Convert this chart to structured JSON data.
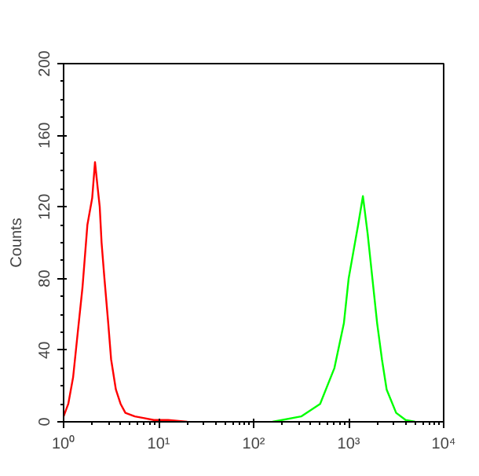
{
  "chart_data": {
    "type": "line",
    "ylabel": "Counts",
    "log": "x",
    "grid": false,
    "xlim": [
      1,
      10000
    ],
    "ylim": [
      0,
      200
    ],
    "xticks": [
      {
        "value": 1,
        "label": "10⁰"
      },
      {
        "value": 10,
        "label": "10¹"
      },
      {
        "value": 100,
        "label": "10²"
      },
      {
        "value": 1000,
        "label": "10³"
      },
      {
        "value": 10000,
        "label": "10⁴"
      }
    ],
    "yticks": [
      0,
      40,
      80,
      120,
      160,
      200
    ],
    "series": [
      {
        "color": "#ff0000",
        "x": [
          1.0,
          1.12,
          1.26,
          1.41,
          1.58,
          1.78,
          2.0,
          2.14,
          2.29,
          2.4,
          2.51,
          2.69,
          2.95,
          3.16,
          3.55,
          3.98,
          4.47,
          5.62,
          7.08,
          8.91,
          12.6,
          20.0
        ],
        "values": [
          3,
          10,
          25,
          50,
          75,
          110,
          125,
          145,
          130,
          120,
          100,
          80,
          55,
          35,
          18,
          10,
          5,
          3,
          2,
          1,
          1,
          0
        ]
      },
      {
        "color": "#00ff00",
        "x": [
          158,
          316,
          501,
          708,
          891,
          1000,
          1122,
          1259,
          1413,
          1585,
          1778,
          1995,
          2239,
          2512,
          3162,
          3981,
          5012
        ],
        "values": [
          0,
          3,
          10,
          30,
          55,
          80,
          95,
          110,
          126,
          105,
          80,
          55,
          35,
          18,
          5,
          1,
          0
        ]
      }
    ]
  }
}
